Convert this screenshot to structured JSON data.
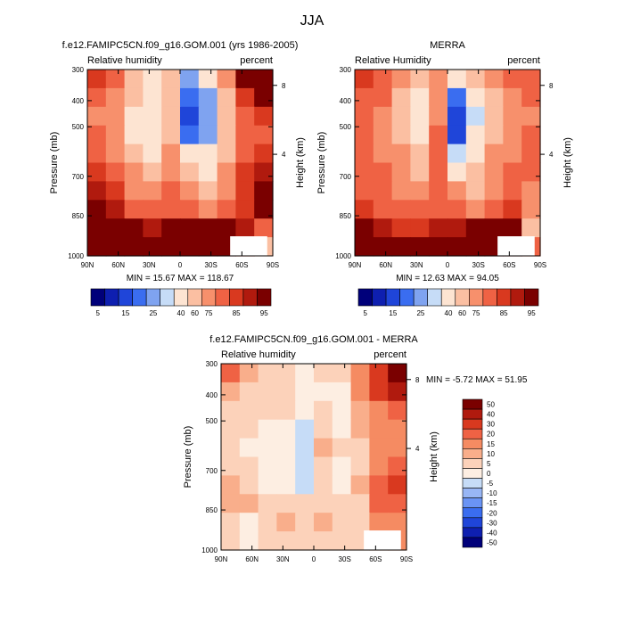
{
  "figure": {
    "title": "JJA"
  },
  "colors": {
    "lev12": [
      "#00007a",
      "#0e1fb0",
      "#1f45d9",
      "#3a6df0",
      "#7fa3f0",
      "#c6dcf7",
      "#fde4d2",
      "#fbbfa2",
      "#f7906c",
      "#ef6244",
      "#d9391f",
      "#b01a0e",
      "#7a0000"
    ],
    "diff": [
      "#00007a",
      "#0e1fb0",
      "#1f45d9",
      "#3a6df0",
      "#6a94f5",
      "#98b6f5",
      "#c6dcf7",
      "#fdeee2",
      "#fcd2ba",
      "#f9ae8b",
      "#f58b62",
      "#ef6244",
      "#d9391f",
      "#b01a0e",
      "#7a0000"
    ]
  },
  "panels": [
    {
      "title": "f.e12.FAMIPC5CN.f09_g16.GOM.001 (yrs 1986-2005)",
      "left_label": "Relative humidity",
      "right_label": "percent",
      "ylabel": "Pressure (mb)",
      "ylabel2": "Height (km)",
      "stats": "MIN =  15.67  MAX = 118.67",
      "yticks": [
        "300",
        "400",
        "500",
        "700",
        "850",
        "1000"
      ],
      "xticks": [
        "90N",
        "60N",
        "30N",
        "0",
        "30S",
        "60S",
        "90S"
      ],
      "hticks": [
        "8",
        "4"
      ],
      "cbar_labels": [
        "5",
        "15",
        "25",
        "40",
        "60",
        "75",
        "85",
        "95"
      ]
    },
    {
      "title": "MERRA",
      "left_label": "Relative Humidity",
      "right_label": "percent",
      "ylabel": "Pressure (mb)",
      "ylabel2": "Height (km)",
      "stats": "MIN =  12.63  MAX =  94.05",
      "yticks": [
        "300",
        "400",
        "500",
        "700",
        "850",
        "1000"
      ],
      "xticks": [
        "90N",
        "60N",
        "30N",
        "0",
        "30S",
        "60S",
        "90S"
      ],
      "hticks": [
        "8",
        "4"
      ],
      "cbar_labels": [
        "5",
        "15",
        "25",
        "40",
        "60",
        "75",
        "85",
        "95"
      ]
    },
    {
      "title": "f.e12.FAMIPC5CN.f09_g16.GOM.001 - MERRA",
      "left_label": "Relative humidity",
      "right_label": "percent",
      "ylabel": "Pressure (mb)",
      "ylabel2": "Height (km)",
      "stats": "MIN =  -5.72  MAX =  51.95",
      "yticks": [
        "300",
        "400",
        "500",
        "700",
        "850",
        "1000"
      ],
      "xticks": [
        "90N",
        "60N",
        "30N",
        "0",
        "30S",
        "60S",
        "90S"
      ],
      "hticks": [
        "8",
        "4"
      ],
      "cbar_labels": [
        "50",
        "40",
        "30",
        "20",
        "15",
        "10",
        "5",
        "0",
        "-5",
        "-10",
        "-15",
        "-20",
        "-30",
        "-40",
        "-50"
      ]
    }
  ],
  "chart_data": [
    {
      "type": "heatmap",
      "title": "f.e12.FAMIPC5CN.f09_g16.GOM.001 (yrs 1986-2005)",
      "variable": "Relative humidity",
      "units": "percent",
      "xlabel": "",
      "ylabel": "Pressure (mb)",
      "x": [
        "90N",
        "60N",
        "30N",
        "0",
        "30S",
        "60S",
        "90S"
      ],
      "y_levels": [
        300,
        400,
        500,
        700,
        850,
        1000
      ],
      "contour_levels": [
        5,
        10,
        15,
        20,
        25,
        30,
        40,
        50,
        60,
        70,
        75,
        80,
        85,
        90,
        95
      ],
      "values": [
        [
          70,
          62,
          45,
          33,
          48,
          22,
          30,
          55,
          82,
          100
        ],
        [
          62,
          55,
          40,
          30,
          45,
          15,
          22,
          48,
          74,
          88
        ],
        [
          58,
          50,
          35,
          30,
          45,
          12,
          20,
          44,
          64,
          72
        ],
        [
          60,
          52,
          36,
          32,
          47,
          18,
          24,
          46,
          62,
          68
        ],
        [
          66,
          58,
          42,
          36,
          52,
          30,
          32,
          48,
          66,
          72
        ],
        [
          72,
          64,
          52,
          42,
          56,
          40,
          36,
          52,
          70,
          78
        ],
        [
          78,
          70,
          58,
          50,
          60,
          56,
          42,
          56,
          72,
          80
        ],
        [
          84,
          76,
          68,
          62,
          68,
          66,
          58,
          66,
          74,
          82
        ],
        [
          90,
          86,
          80,
          78,
          80,
          84,
          80,
          80,
          76,
          64
        ],
        [
          92,
          90,
          88,
          86,
          84,
          88,
          88,
          86,
          72,
          40
        ]
      ],
      "min": 15.67,
      "max": 118.67
    },
    {
      "type": "heatmap",
      "title": "MERRA",
      "variable": "Relative Humidity",
      "units": "percent",
      "xlabel": "",
      "ylabel": "Pressure (mb)",
      "x": [
        "90N",
        "60N",
        "30N",
        "0",
        "30S",
        "60S",
        "90S"
      ],
      "y_levels": [
        300,
        400,
        500,
        700,
        850,
        1000
      ],
      "contour_levels": [
        5,
        10,
        15,
        20,
        25,
        30,
        40,
        50,
        60,
        70,
        75,
        80,
        85,
        90,
        95
      ],
      "values": [
        [
          70,
          66,
          52,
          42,
          52,
          38,
          44,
          52,
          60,
          64
        ],
        [
          66,
          60,
          45,
          32,
          50,
          16,
          30,
          48,
          56,
          60
        ],
        [
          62,
          56,
          42,
          30,
          52,
          10,
          28,
          46,
          56,
          58
        ],
        [
          62,
          56,
          45,
          38,
          60,
          14,
          30,
          48,
          56,
          60
        ],
        [
          64,
          58,
          50,
          42,
          66,
          26,
          34,
          50,
          58,
          64
        ],
        [
          66,
          60,
          54,
          48,
          66,
          38,
          40,
          52,
          60,
          64
        ],
        [
          68,
          64,
          58,
          52,
          66,
          52,
          48,
          56,
          62,
          58
        ],
        [
          72,
          68,
          62,
          60,
          68,
          64,
          58,
          64,
          70,
          52
        ],
        [
          80,
          76,
          72,
          74,
          76,
          78,
          80,
          80,
          82,
          48
        ],
        [
          88,
          86,
          84,
          86,
          84,
          88,
          88,
          86,
          88,
          60
        ]
      ],
      "min": 12.63,
      "max": 94.05
    },
    {
      "type": "heatmap",
      "title": "f.e12.FAMIPC5CN.f09_g16.GOM.001 - MERRA",
      "variable": "Relative humidity",
      "units": "percent",
      "xlabel": "",
      "ylabel": "Pressure (mb)",
      "x": [
        "90N",
        "60N",
        "30N",
        "0",
        "30S",
        "60S",
        "90S"
      ],
      "y_levels": [
        300,
        400,
        500,
        700,
        850,
        1000
      ],
      "contour_levels": [
        -50,
        -40,
        -30,
        -20,
        -15,
        -10,
        -5,
        0,
        5,
        10,
        15,
        20,
        30,
        40,
        50
      ],
      "values": [
        [
          16,
          8,
          4,
          1,
          -4,
          2,
          4,
          12,
          26,
          44
        ],
        [
          8,
          4,
          2,
          0,
          -3,
          -1,
          -4,
          10,
          20,
          30
        ],
        [
          4,
          2,
          0,
          0,
          -4,
          2,
          -4,
          6,
          12,
          18
        ],
        [
          2,
          1,
          -2,
          -1,
          -6,
          4,
          -3,
          6,
          10,
          12
        ],
        [
          2,
          -1,
          -3,
          -4,
          -6,
          6,
          0,
          4,
          12,
          14
        ],
        [
          4,
          2,
          -2,
          -4,
          -6,
          2,
          -2,
          3,
          12,
          16
        ],
        [
          6,
          4,
          -2,
          -3,
          -6,
          2,
          -4,
          6,
          18,
          20
        ],
        [
          8,
          6,
          2,
          2,
          0,
          2,
          0,
          4,
          16,
          18
        ],
        [
          4,
          -2,
          4,
          6,
          4,
          6,
          2,
          2,
          10,
          14
        ],
        [
          2,
          -3,
          2,
          2,
          0,
          2,
          4,
          2,
          8,
          10
        ]
      ],
      "min": -5.72,
      "max": 51.95
    }
  ]
}
